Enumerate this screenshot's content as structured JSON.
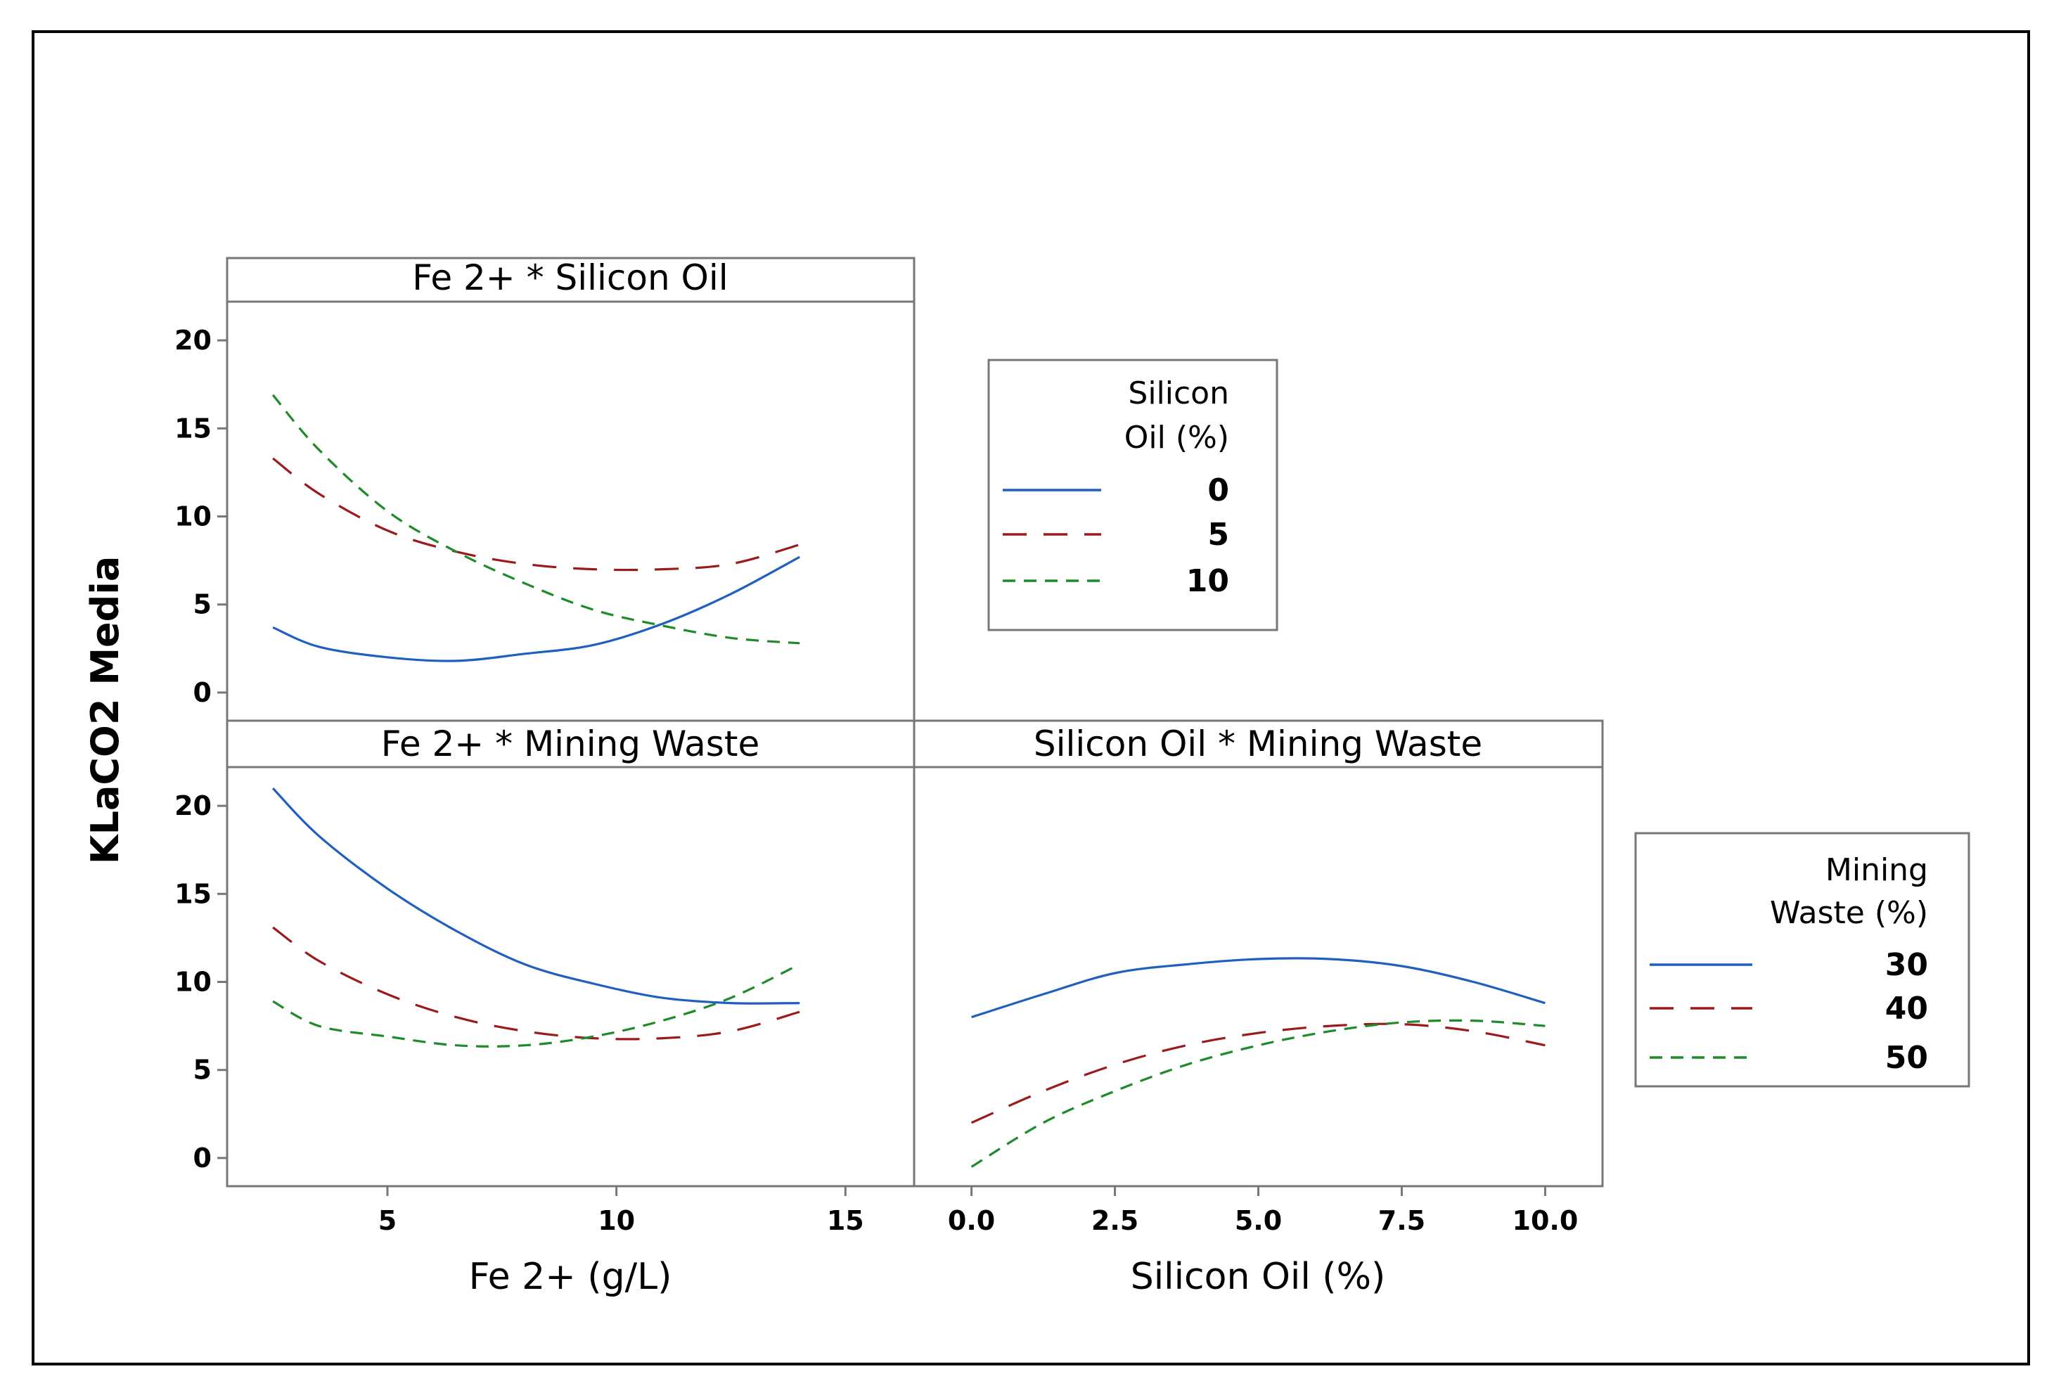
{
  "chart_data": {
    "type": "line",
    "ylabel": "KLaCO2 Media",
    "ylim": [
      -1.6,
      22.2
    ],
    "yticks": [
      0,
      5,
      10,
      15,
      20
    ],
    "colors": {
      "blue": "#1f5fbf",
      "red": "#9b1b1b",
      "green": "#1f8a2a",
      "frame": "#777777",
      "outer": "#000000"
    },
    "legends": [
      {
        "title_lines": [
          "Silicon",
          "Oil (%)"
        ],
        "levels": [
          {
            "label": "0",
            "color": "#1f5fbf",
            "dash": "solid"
          },
          {
            "label": "5",
            "color": "#9b1b1b",
            "dash": "long"
          },
          {
            "label": "10",
            "color": "#1f8a2a",
            "dash": "short"
          }
        ]
      },
      {
        "title_lines": [
          "Mining",
          "Waste (%)"
        ],
        "levels": [
          {
            "label": "30",
            "color": "#1f5fbf",
            "dash": "solid"
          },
          {
            "label": "40",
            "color": "#9b1b1b",
            "dash": "long"
          },
          {
            "label": "50",
            "color": "#1f8a2a",
            "dash": "short"
          }
        ]
      }
    ],
    "panels": [
      {
        "id": "fe-silicon",
        "title": "Fe 2+ * Silicon Oil",
        "xlim": [
          1.5,
          16.5
        ],
        "x": [
          2.5,
          3.5,
          5,
          6.5,
          8,
          9.5,
          11,
          12.5,
          14
        ],
        "series": [
          {
            "name": "0",
            "values": [
              3.7,
              2.6,
              2.0,
              1.8,
              2.2,
              2.7,
              3.9,
              5.6,
              7.7
            ]
          },
          {
            "name": "5",
            "values": [
              13.3,
              11.3,
              9.2,
              8.0,
              7.3,
              7.0,
              7.0,
              7.3,
              8.4
            ]
          },
          {
            "name": "10",
            "values": [
              16.9,
              13.8,
              10.3,
              8.0,
              6.2,
              4.7,
              3.8,
              3.1,
              2.8
            ]
          }
        ]
      },
      {
        "id": "fe-mining",
        "title": "Fe 2+ * Mining Waste",
        "xlabel": "Fe 2+ (g/L)",
        "xlim": [
          1.5,
          16.5
        ],
        "xticks": [
          5,
          10,
          15
        ],
        "x": [
          2.5,
          3.5,
          5,
          6.5,
          8,
          9.5,
          11,
          12.5,
          14
        ],
        "series": [
          {
            "name": "30",
            "values": [
              21.0,
              18.3,
              15.3,
              12.9,
              11.0,
              9.9,
              9.1,
              8.8,
              8.8
            ]
          },
          {
            "name": "40",
            "values": [
              13.1,
              11.2,
              9.3,
              8.0,
              7.2,
              6.8,
              6.8,
              7.2,
              8.3
            ]
          },
          {
            "name": "50",
            "values": [
              8.9,
              7.5,
              6.9,
              6.4,
              6.4,
              6.9,
              7.8,
              9.1,
              11.0
            ]
          }
        ]
      },
      {
        "id": "silicon-mining",
        "title": "Silicon Oil * Mining Waste",
        "xlabel": "Silicon Oil (%)",
        "xlim": [
          -1.0,
          11.0
        ],
        "xticks": [
          "0.0",
          "2.5",
          "5.0",
          "7.5",
          "10.0"
        ],
        "x": [
          0,
          1.25,
          2.5,
          3.75,
          5,
          6.25,
          7.5,
          8.75,
          10
        ],
        "series": [
          {
            "name": "30",
            "values": [
              8.0,
              9.3,
              10.5,
              11.0,
              11.3,
              11.3,
              10.9,
              10.0,
              8.8
            ]
          },
          {
            "name": "40",
            "values": [
              2.0,
              3.8,
              5.3,
              6.4,
              7.1,
              7.5,
              7.6,
              7.2,
              6.4
            ]
          },
          {
            "name": "50",
            "values": [
              -0.5,
              2.0,
              3.8,
              5.3,
              6.4,
              7.2,
              7.7,
              7.8,
              7.5
            ]
          }
        ]
      }
    ]
  }
}
